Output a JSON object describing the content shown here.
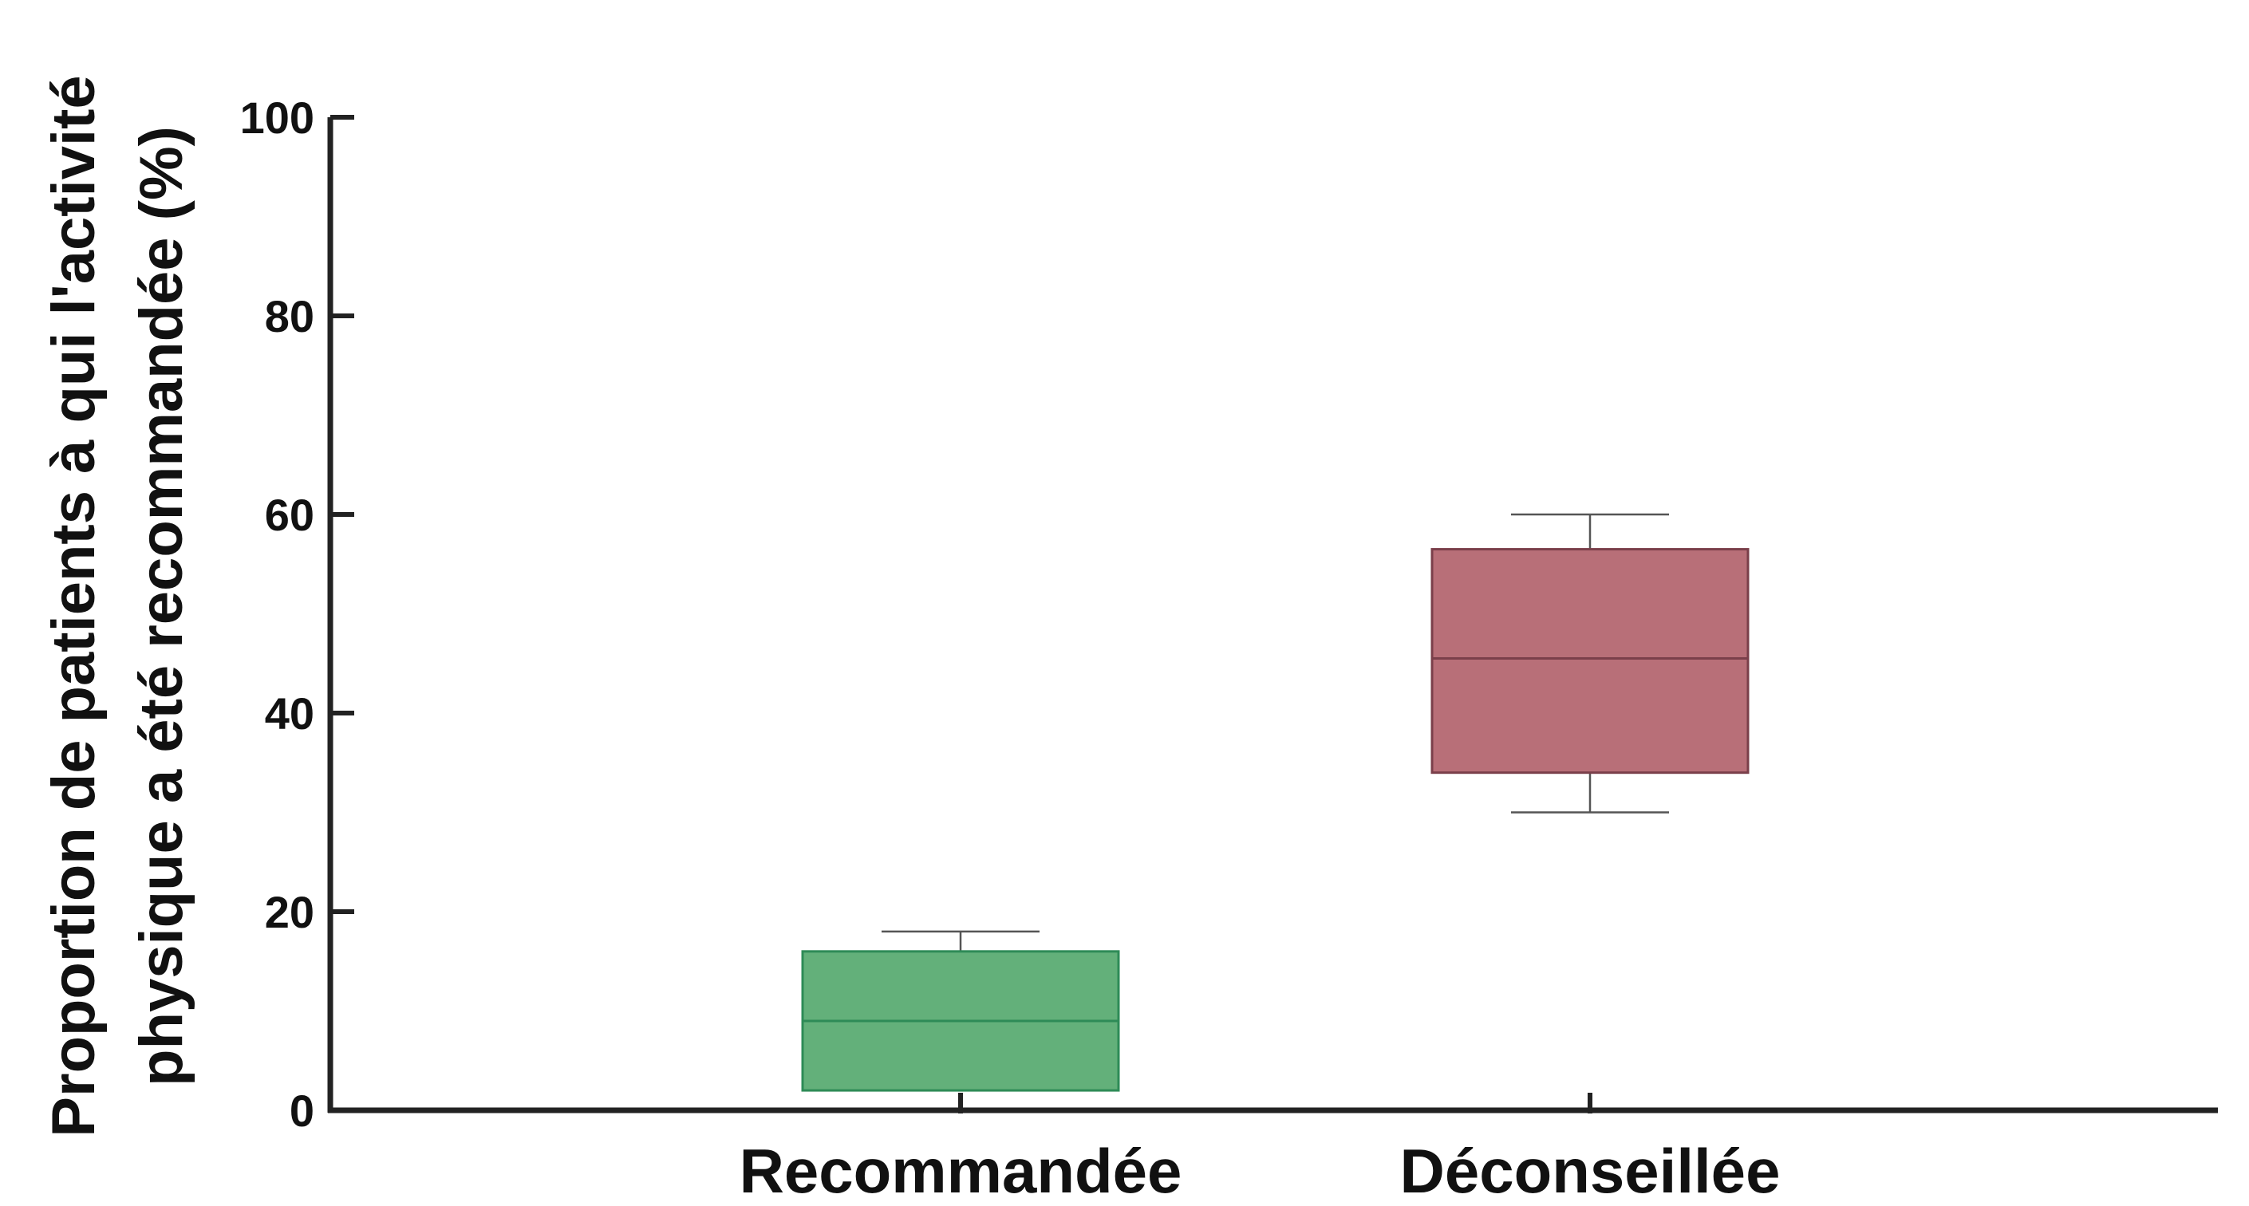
{
  "chart_data": {
    "type": "box",
    "ylabel_lines": [
      "Proportion de patients à qui l'activité",
      "physique a été recommandée (%)"
    ],
    "xlabel": "",
    "ylim": [
      0,
      100
    ],
    "yticks": [
      0,
      20,
      40,
      60,
      80,
      100
    ],
    "grid": false,
    "categories": [
      "Recommandée",
      "Déconseillée"
    ],
    "boxes": [
      {
        "name": "Recommandée",
        "whisker_low": 2,
        "q1": 2,
        "median": 9,
        "q3": 16,
        "whisker_high": 18,
        "fill": "#63b07a",
        "stroke": "#2e8b57"
      },
      {
        "name": "Déconseillée",
        "whisker_low": 30,
        "q1": 34,
        "median": 45.5,
        "q3": 56.5,
        "whisker_high": 60,
        "fill": "#b86f78",
        "stroke": "#7a3f4a"
      }
    ]
  }
}
